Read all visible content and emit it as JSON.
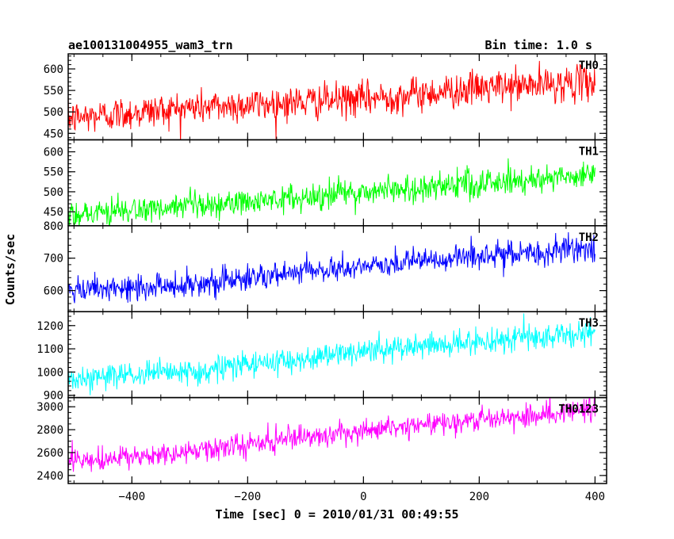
{
  "title_left": "ae100131004955_wam3_trn",
  "title_right": "Bin time: 1.0 s",
  "xlabel": "Time [sec] 0 = 2010/01/31 00:49:55",
  "ylabel": "Counts/sec",
  "chart_data": {
    "type": "line",
    "x_range": [
      -510,
      400
    ],
    "xlim": [
      -510,
      420
    ],
    "xticks": [
      -400,
      -200,
      0,
      200,
      400
    ],
    "x_minor_step": 50,
    "bin_time": 1.0,
    "panels": [
      {
        "name": "TH0",
        "color": "#ff0000",
        "ylim": [
          435,
          635
        ],
        "yticks": [
          450,
          500,
          550,
          600
        ],
        "y_minor_step": 10,
        "trend": [
          [
            -510,
            485
          ],
          [
            -300,
            510
          ],
          [
            0,
            530
          ],
          [
            200,
            555
          ],
          [
            400,
            570
          ]
        ],
        "noise_amplitude": 40
      },
      {
        "name": "TH1",
        "color": "#00ff00",
        "ylim": [
          415,
          630
        ],
        "yticks": [
          450,
          500,
          550,
          600
        ],
        "y_minor_step": 10,
        "trend": [
          [
            -510,
            445
          ],
          [
            -300,
            460
          ],
          [
            0,
            500
          ],
          [
            200,
            520
          ],
          [
            400,
            545
          ]
        ],
        "noise_amplitude": 35
      },
      {
        "name": "TH2",
        "color": "#0000ff",
        "ylim": [
          535,
          800
        ],
        "yticks": [
          600,
          700,
          800
        ],
        "y_minor_step": 20,
        "trend": [
          [
            -510,
            595
          ],
          [
            -300,
            620
          ],
          [
            0,
            675
          ],
          [
            200,
            705
          ],
          [
            400,
            730
          ]
        ],
        "noise_amplitude": 40
      },
      {
        "name": "TH3",
        "color": "#00ffff",
        "ylim": [
          890,
          1260
        ],
        "yticks": [
          900,
          1000,
          1100,
          1200
        ],
        "y_minor_step": 20,
        "trend": [
          [
            -510,
            970
          ],
          [
            -300,
            1000
          ],
          [
            0,
            1090
          ],
          [
            200,
            1130
          ],
          [
            400,
            1170
          ]
        ],
        "noise_amplitude": 55
      },
      {
        "name": "TH0123",
        "color": "#ff00ff",
        "ylim": [
          2330,
          3080
        ],
        "yticks": [
          2400,
          2600,
          2800,
          3000
        ],
        "y_minor_step": 50,
        "trend": [
          [
            -510,
            2510
          ],
          [
            -300,
            2600
          ],
          [
            0,
            2800
          ],
          [
            200,
            2890
          ],
          [
            400,
            2980
          ]
        ],
        "noise_amplitude": 100
      }
    ]
  }
}
